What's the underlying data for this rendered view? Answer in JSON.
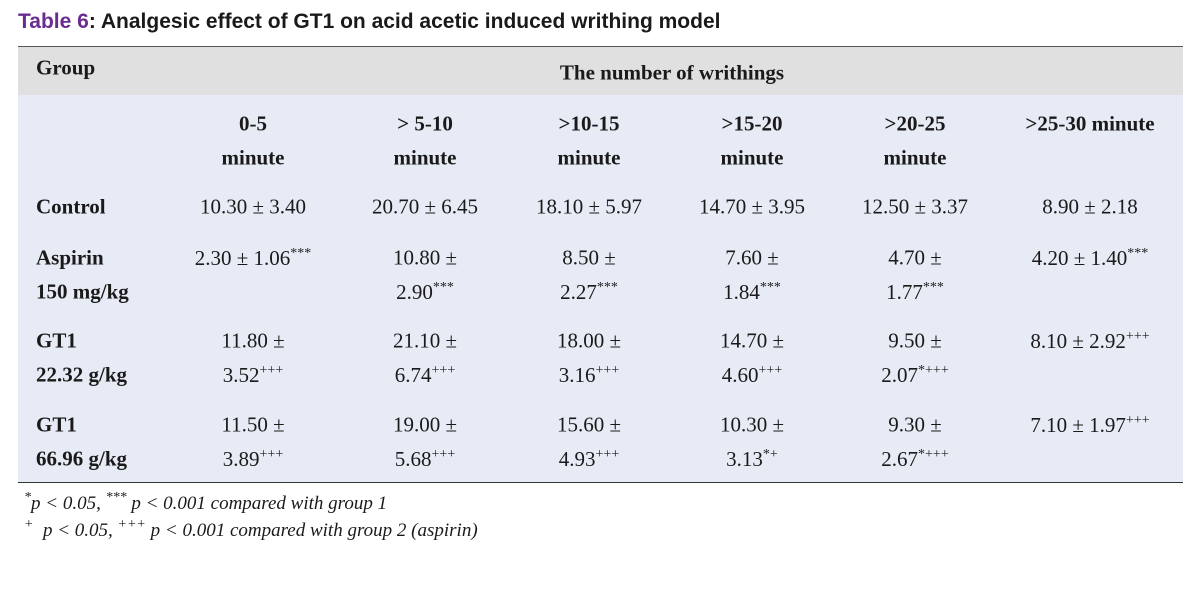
{
  "caption": {
    "label": "Table 6",
    "text": ": Analgesic effect of GT1 on acid acetic induced writhing model"
  },
  "table": {
    "group_header": "Group",
    "span_header": "The number of writhings",
    "columns": [
      {
        "lines": [
          "0-5",
          "minute"
        ]
      },
      {
        "lines": [
          "> 5-10",
          "minute"
        ]
      },
      {
        "lines": [
          ">10-15",
          "minute"
        ]
      },
      {
        "lines": [
          ">15-20",
          "minute"
        ]
      },
      {
        "lines": [
          ">20-25",
          "minute"
        ]
      },
      {
        "lines": [
          ">25-30 minute"
        ]
      }
    ],
    "rows": [
      {
        "group": [
          "Control"
        ],
        "cells": [
          {
            "lines": [
              "10.30 ± 3.40"
            ]
          },
          {
            "lines": [
              "20.70 ± 6.45"
            ]
          },
          {
            "lines": [
              "18.10 ± 5.97"
            ]
          },
          {
            "lines": [
              "14.70 ± 3.95"
            ]
          },
          {
            "lines": [
              "12.50 ± 3.37"
            ]
          },
          {
            "lines": [
              "8.90 ± 2.18"
            ]
          }
        ]
      },
      {
        "group": [
          "Aspirin",
          "150 mg/kg"
        ],
        "cells": [
          {
            "lines": [
              "2.30 ± 1.06"
            ],
            "sup": "***"
          },
          {
            "lines": [
              "10.80 ±",
              "2.90"
            ],
            "sup": "***"
          },
          {
            "lines": [
              "8.50 ±",
              "2.27"
            ],
            "sup": "***"
          },
          {
            "lines": [
              "7.60 ±",
              "1.84"
            ],
            "sup": "***"
          },
          {
            "lines": [
              "4.70 ±",
              "1.77"
            ],
            "sup": "***"
          },
          {
            "lines": [
              "4.20 ± 1.40"
            ],
            "sup": "***"
          }
        ]
      },
      {
        "group": [
          "GT1",
          "22.32 g/kg"
        ],
        "cells": [
          {
            "lines": [
              "11.80 ±",
              "3.52"
            ],
            "sup": "+++"
          },
          {
            "lines": [
              "21.10 ±",
              "6.74"
            ],
            "sup": "+++"
          },
          {
            "lines": [
              "18.00 ±",
              "3.16"
            ],
            "sup": "+++"
          },
          {
            "lines": [
              "14.70 ±",
              "4.60"
            ],
            "sup": "+++"
          },
          {
            "lines": [
              "9.50 ±",
              "2.07"
            ],
            "sup": "*+++"
          },
          {
            "lines": [
              "8.10 ± 2.92"
            ],
            "sup": "+++"
          }
        ]
      },
      {
        "group": [
          "GT1",
          "66.96 g/kg"
        ],
        "cells": [
          {
            "lines": [
              "11.50 ±",
              "3.89"
            ],
            "sup": "+++"
          },
          {
            "lines": [
              "19.00 ±",
              "5.68"
            ],
            "sup": "+++"
          },
          {
            "lines": [
              "15.60 ±",
              "4.93"
            ],
            "sup": "+++"
          },
          {
            "lines": [
              "10.30 ±",
              "3.13"
            ],
            "sup": "*+"
          },
          {
            "lines": [
              "9.30 ±",
              "2.67"
            ],
            "sup": "*+++"
          },
          {
            "lines": [
              "7.10 ± 1.97"
            ],
            "sup": "+++"
          }
        ]
      }
    ]
  },
  "footnotes": [
    [
      {
        "sup": "*"
      },
      {
        "t": "p < 0.05, "
      },
      {
        "sup": "***"
      },
      {
        "t": " p < 0.001 compared with group 1"
      }
    ],
    [
      {
        "sup": "+"
      },
      {
        "t": "  p < 0.05, "
      },
      {
        "sup": "+++"
      },
      {
        "t": " p < 0.001 compared with group 2 (aspirin)"
      }
    ]
  ]
}
